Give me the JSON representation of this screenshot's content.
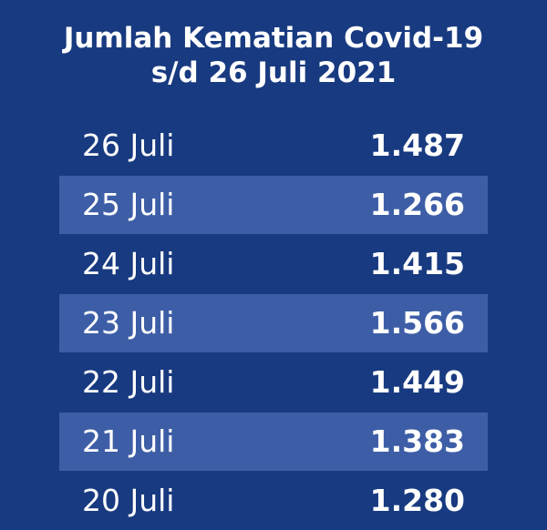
{
  "header": {
    "title": [
      "Jumlah Kematian Covid-19",
      "s/d 26 Juli 2021"
    ]
  },
  "table": {
    "rows": [
      [
        "26 Juli",
        "1.487"
      ],
      [
        "25 Juli",
        "1.266"
      ],
      [
        "24 Juli",
        "1.415"
      ],
      [
        "23 Juli",
        "1.566"
      ],
      [
        "22 Juli",
        "1.449"
      ],
      [
        "21 Juli",
        "1.383"
      ],
      [
        "20 Juli",
        "1.280"
      ]
    ]
  }
}
